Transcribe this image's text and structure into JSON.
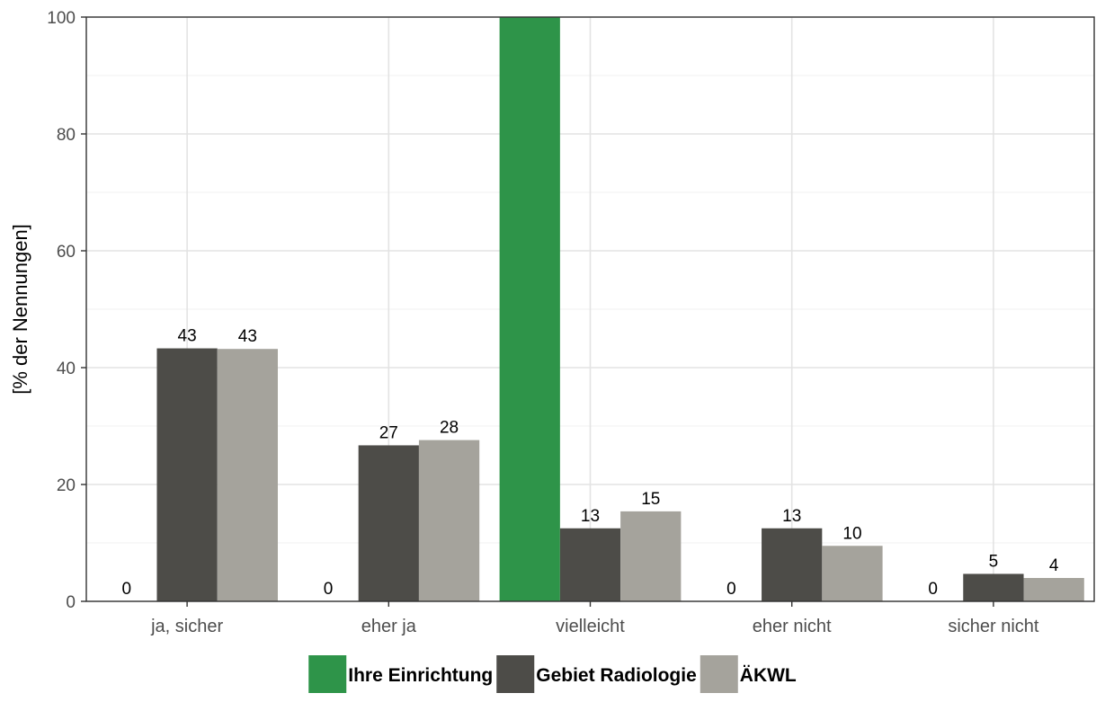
{
  "chart_data": {
    "type": "bar",
    "title": "",
    "xlabel": "",
    "ylabel": "[% der Nennungen]",
    "ylim": [
      0,
      100
    ],
    "yticks": [
      0,
      20,
      40,
      60,
      80,
      100
    ],
    "grid": true,
    "legend_position": "bottom",
    "categories": [
      "ja, sicher",
      "eher ja",
      "vielleicht",
      "eher nicht",
      "sicher nicht"
    ],
    "series": [
      {
        "name": "Ihre Einrichtung",
        "color": "#2e9449",
        "values": [
          0,
          0,
          100,
          0,
          0
        ],
        "labels": [
          "0",
          "0",
          "",
          "0",
          "0"
        ]
      },
      {
        "name": "Gebiet Radiologie",
        "color": "#4d4c48",
        "values": [
          43.3,
          26.7,
          12.5,
          12.5,
          4.7
        ],
        "labels": [
          "43",
          "27",
          "13",
          "13",
          "5"
        ]
      },
      {
        "name": "ÄKWL",
        "color": "#a5a39c",
        "values": [
          43.2,
          27.6,
          15.4,
          9.5,
          4.0
        ],
        "labels": [
          "43",
          "28",
          "15",
          "10",
          "4"
        ]
      }
    ]
  }
}
